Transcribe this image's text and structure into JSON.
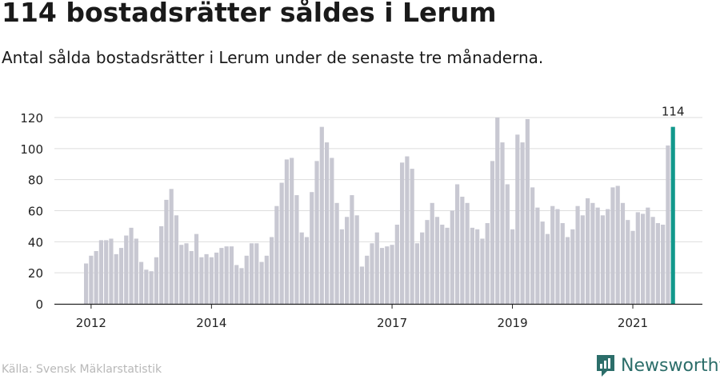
{
  "title": "114 bostadsrätter såldes i Lerum",
  "subtitle": "Antal sålda bostadsrätter i Lerum under de senaste tre månaderna.",
  "source": "Källa: Svensk Mäklarstatistik",
  "brand": {
    "name": "Newsworthy",
    "icon": "newsworthy-logo-icon",
    "color": "#2c6e6a"
  },
  "colors": {
    "bar": "#c8c8d2",
    "highlight": "#12988c",
    "grid": "#dddddd",
    "axis": "#222222"
  },
  "chart_data": {
    "type": "bar",
    "title": "",
    "xlabel": "",
    "ylabel": "",
    "ylim": [
      0,
      120
    ],
    "yticks": [
      0,
      20,
      40,
      60,
      80,
      100,
      120
    ],
    "grid": true,
    "x_start": "2011-12",
    "xticks": [
      {
        "label": "2012",
        "month": "2012-01"
      },
      {
        "label": "2014",
        "month": "2014-01"
      },
      {
        "label": "2017",
        "month": "2017-01"
      },
      {
        "label": "2019",
        "month": "2019-01"
      },
      {
        "label": "2021",
        "month": "2021-01"
      }
    ],
    "values": [
      26,
      31,
      34,
      41,
      41,
      42,
      32,
      36,
      44,
      49,
      42,
      27,
      22,
      21,
      30,
      50,
      67,
      74,
      57,
      38,
      39,
      34,
      45,
      30,
      32,
      30,
      33,
      36,
      37,
      37,
      25,
      23,
      31,
      39,
      39,
      27,
      31,
      43,
      63,
      78,
      93,
      94,
      70,
      46,
      43,
      72,
      92,
      114,
      104,
      94,
      65,
      48,
      56,
      70,
      57,
      24,
      31,
      39,
      46,
      36,
      37,
      38,
      51,
      91,
      95,
      87,
      39,
      46,
      54,
      65,
      56,
      51,
      49,
      60,
      77,
      69,
      65,
      49,
      48,
      42,
      52,
      92,
      120,
      104,
      77,
      48,
      109,
      104,
      119,
      75,
      62,
      53,
      45,
      63,
      61,
      52,
      43,
      48,
      63,
      57,
      68,
      65,
      62,
      57,
      61,
      75,
      76,
      65,
      54,
      47,
      59,
      58,
      62,
      56,
      52,
      51,
      102,
      114
    ],
    "highlight_index": 117,
    "highlight_label": "114"
  }
}
